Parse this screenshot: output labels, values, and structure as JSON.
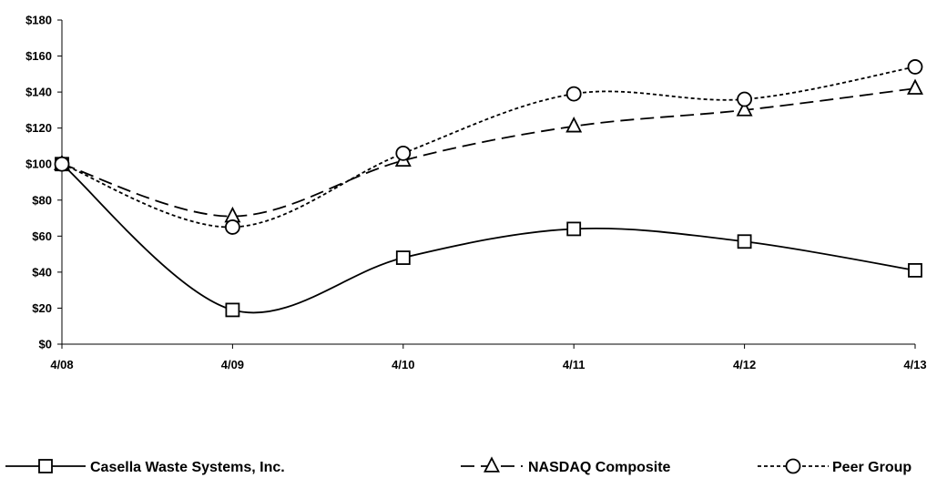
{
  "chart_data": {
    "type": "line",
    "title": "",
    "xlabel": "",
    "ylabel": "",
    "categories": [
      "4/08",
      "4/09",
      "4/10",
      "4/11",
      "4/12",
      "4/13"
    ],
    "ylim": [
      0,
      180
    ],
    "y_ticks": [
      0,
      20,
      40,
      60,
      80,
      100,
      120,
      140,
      160,
      180
    ],
    "y_tick_labels": [
      "$0",
      "$20",
      "$40",
      "$60",
      "$80",
      "$100",
      "$120",
      "$140",
      "$160",
      "$180"
    ],
    "grid": false,
    "legend_position": "bottom",
    "series": [
      {
        "name": "Casella Waste Systems, Inc.",
        "values": [
          100,
          19,
          48,
          64,
          57,
          41
        ],
        "marker": "square",
        "line_style": "solid",
        "color": "#000000"
      },
      {
        "name": "NASDAQ Composite",
        "values": [
          100,
          71,
          102,
          121,
          130,
          142
        ],
        "marker": "triangle",
        "line_style": "long-dash",
        "color": "#000000"
      },
      {
        "name": "Peer Group",
        "values": [
          100,
          65,
          106,
          139,
          136,
          154
        ],
        "marker": "circle",
        "line_style": "dotted",
        "color": "#000000"
      }
    ]
  }
}
